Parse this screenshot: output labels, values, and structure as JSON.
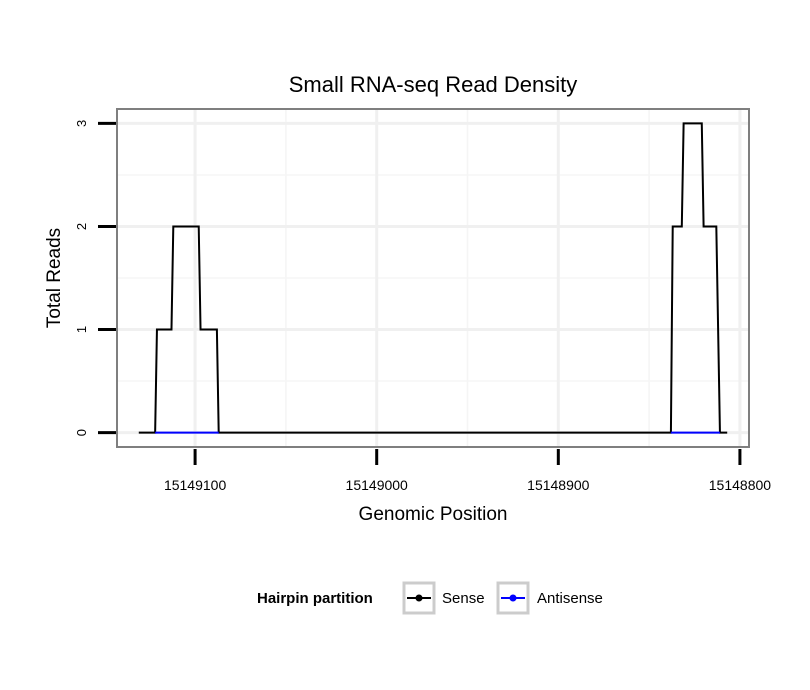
{
  "chart_data": {
    "type": "line",
    "title": "Small RNA-seq Read Density",
    "xlabel": "Genomic Position",
    "ylabel": "Total Reads",
    "x_reversed": true,
    "xlim": [
      15149143,
      15148795
    ],
    "ylim": [
      -0.14,
      3.14
    ],
    "x_ticks": [
      15149100,
      15149000,
      15148900,
      15148800
    ],
    "x_tick_labels": [
      "15149100",
      "15149000",
      "15148900",
      "15148800"
    ],
    "y_ticks": [
      0,
      1,
      2,
      3
    ],
    "y_tick_labels": [
      "0",
      "1",
      "2",
      "3"
    ],
    "grid": true,
    "legend": {
      "title": "Hairpin partition",
      "position": "bottom",
      "entries": [
        "Sense",
        "Antisense"
      ]
    },
    "series": [
      {
        "name": "Sense",
        "color": "#000000",
        "points": [
          [
            15149131,
            0
          ],
          [
            15149122,
            0
          ],
          [
            15149121,
            1
          ],
          [
            15149113,
            1
          ],
          [
            15149112,
            2
          ],
          [
            15149098,
            2
          ],
          [
            15149097,
            1
          ],
          [
            15149088,
            1
          ],
          [
            15149087,
            0
          ],
          [
            15148838,
            0
          ],
          [
            15148837,
            2
          ],
          [
            15148832,
            2
          ],
          [
            15148831,
            3
          ],
          [
            15148821,
            3
          ],
          [
            15148820,
            2
          ],
          [
            15148813,
            2
          ],
          [
            15148811,
            0
          ],
          [
            15148807,
            0
          ]
        ]
      },
      {
        "name": "Antisense",
        "color": "#0000ff",
        "points": [
          [
            15149122,
            0
          ],
          [
            15149087,
            0
          ],
          [
            15148838,
            0
          ],
          [
            15148811,
            0
          ]
        ]
      }
    ]
  }
}
